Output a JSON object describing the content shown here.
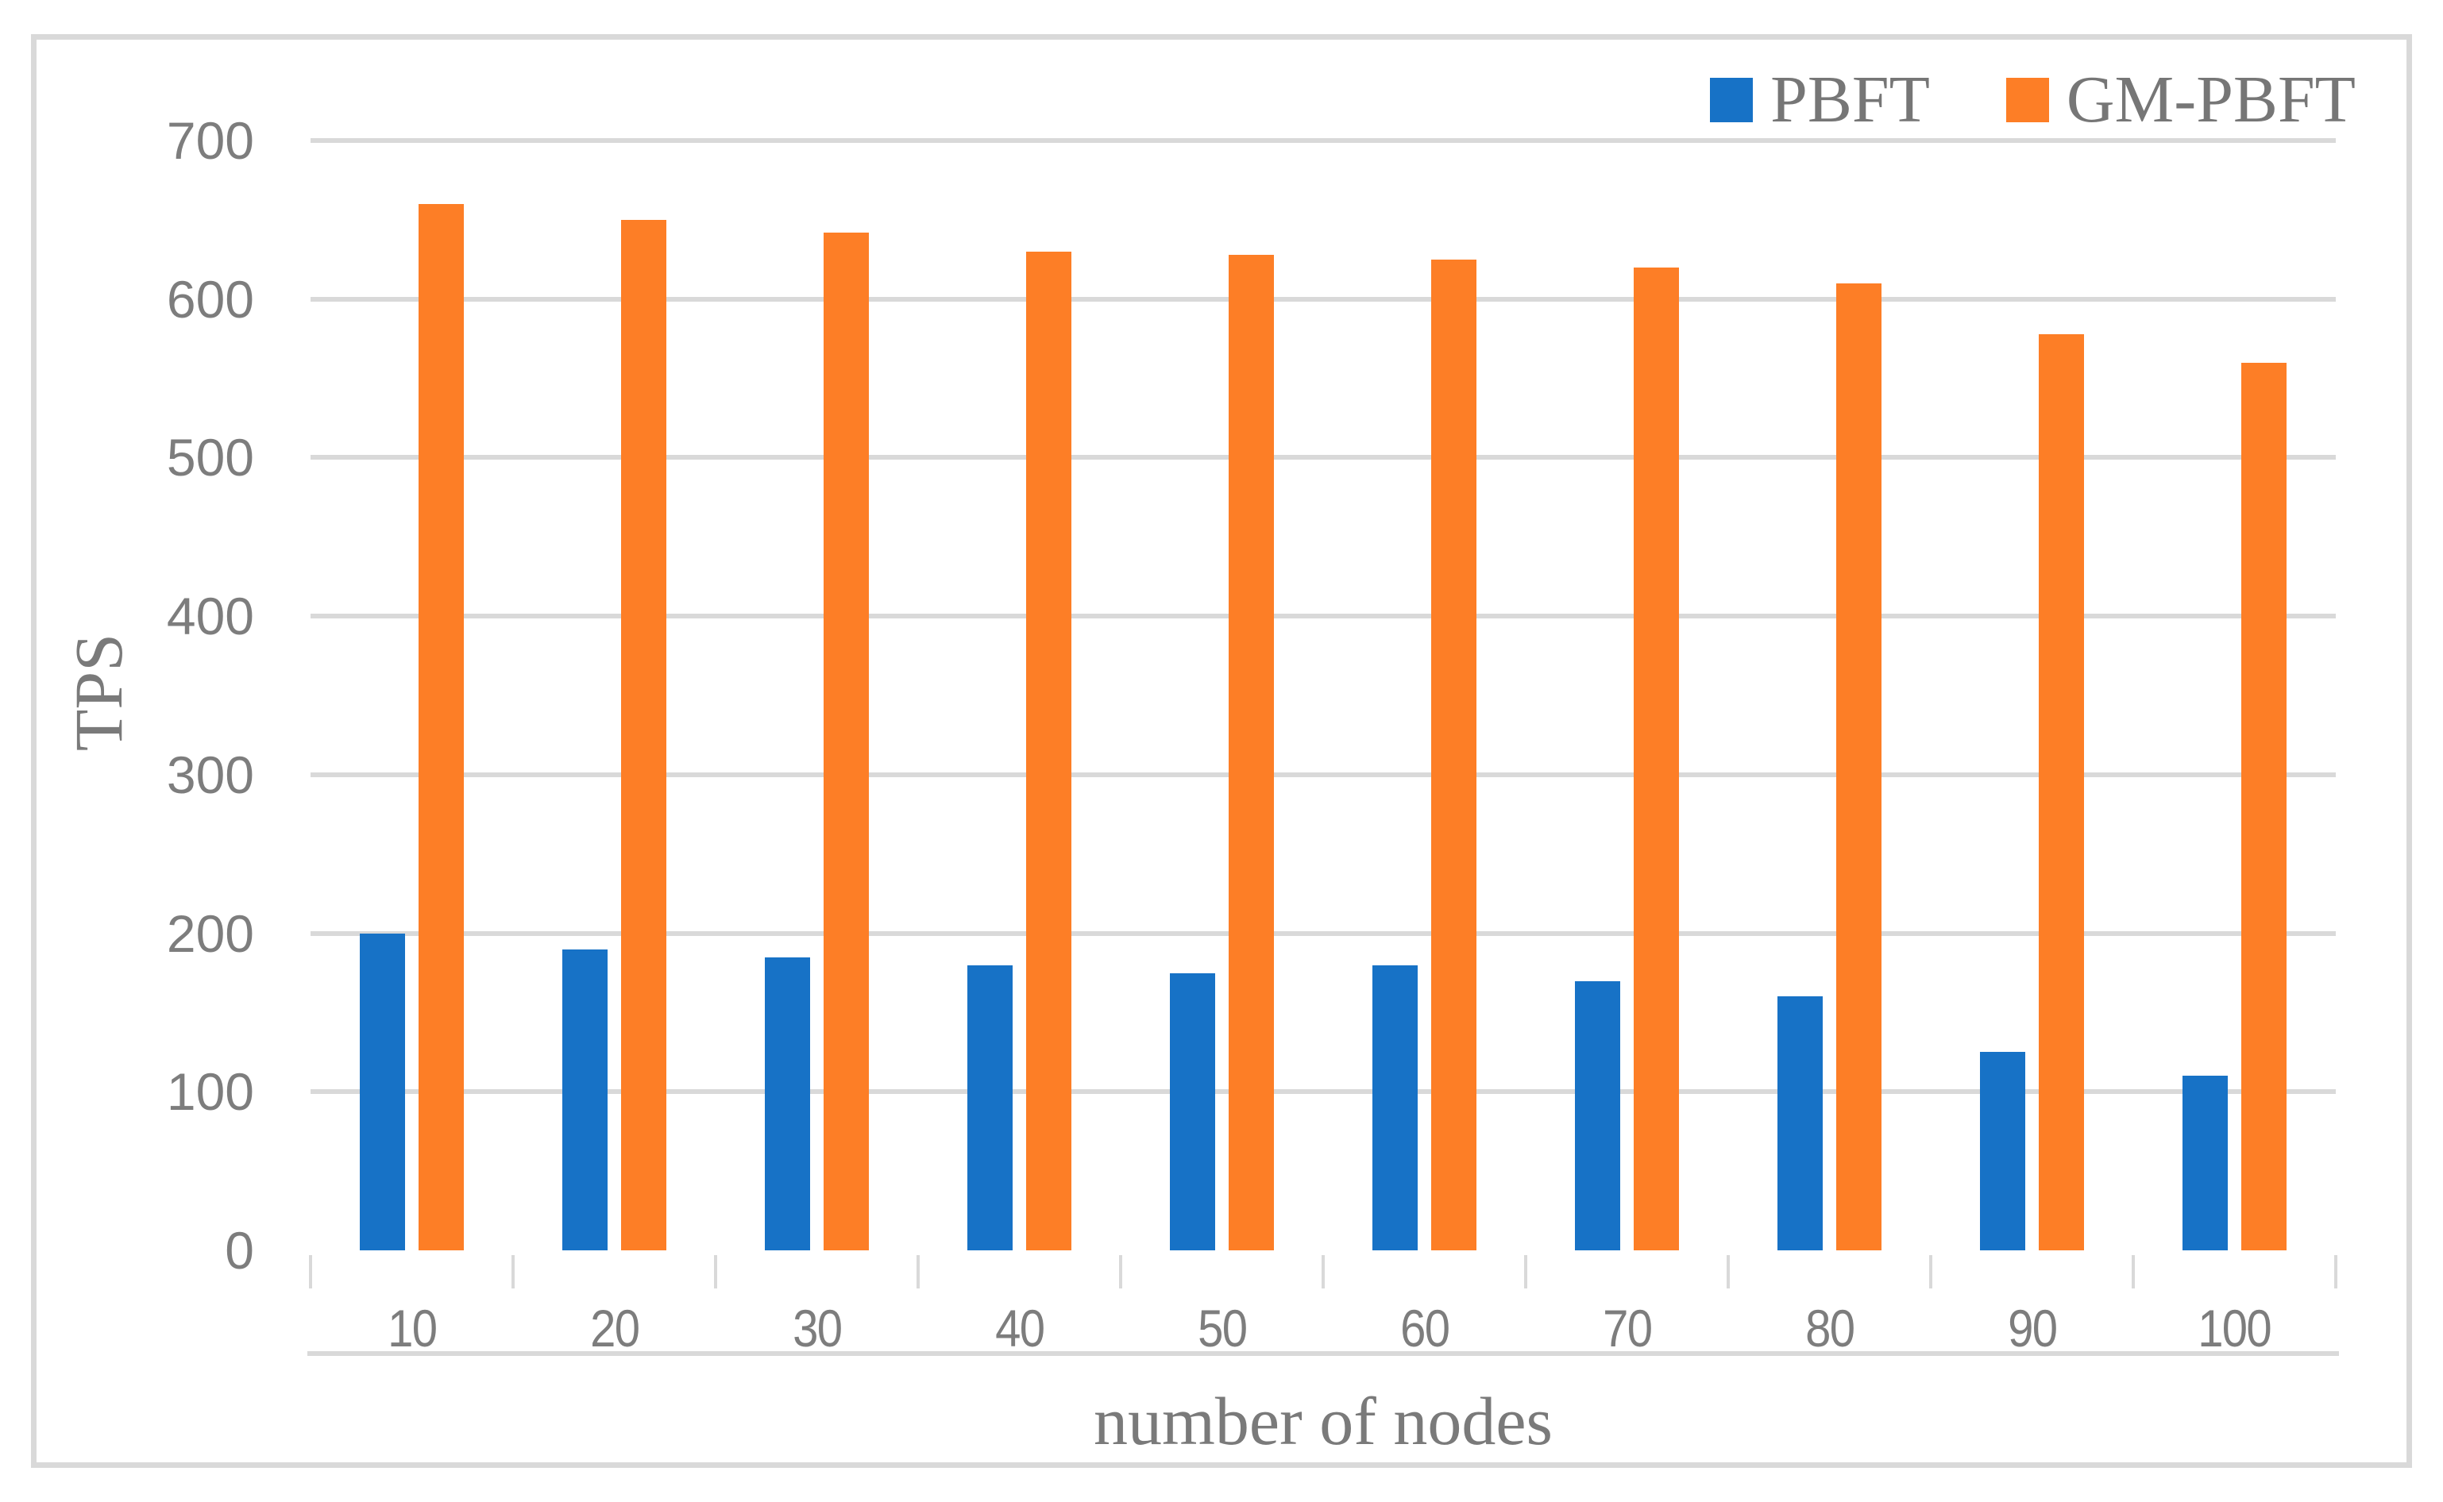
{
  "chart_data": {
    "type": "bar",
    "title": "",
    "xlabel": "number of nodes",
    "ylabel": "TPS",
    "categories": [
      "10",
      "20",
      "30",
      "40",
      "50",
      "60",
      "70",
      "80",
      "90",
      "100"
    ],
    "series": [
      {
        "name": "PBFT",
        "color": "#1772c6",
        "values": [
          200,
          190,
          185,
          180,
          175,
          180,
          170,
          160,
          125,
          110
        ]
      },
      {
        "name": "GM-PBFT",
        "color": "#fd7e26",
        "values": [
          660,
          650,
          642,
          630,
          628,
          625,
          620,
          610,
          578,
          560
        ]
      }
    ],
    "ylim": [
      0,
      700
    ],
    "ytick_step": 100,
    "yticks": [
      "0",
      "100",
      "200",
      "300",
      "400",
      "500",
      "600",
      "700"
    ],
    "grid": true,
    "legend_position": "top-right"
  },
  "style": {
    "grid_color": "#d9d9d9",
    "frame_color": "#d9d9d9",
    "text_color": "#7a7a7a"
  }
}
